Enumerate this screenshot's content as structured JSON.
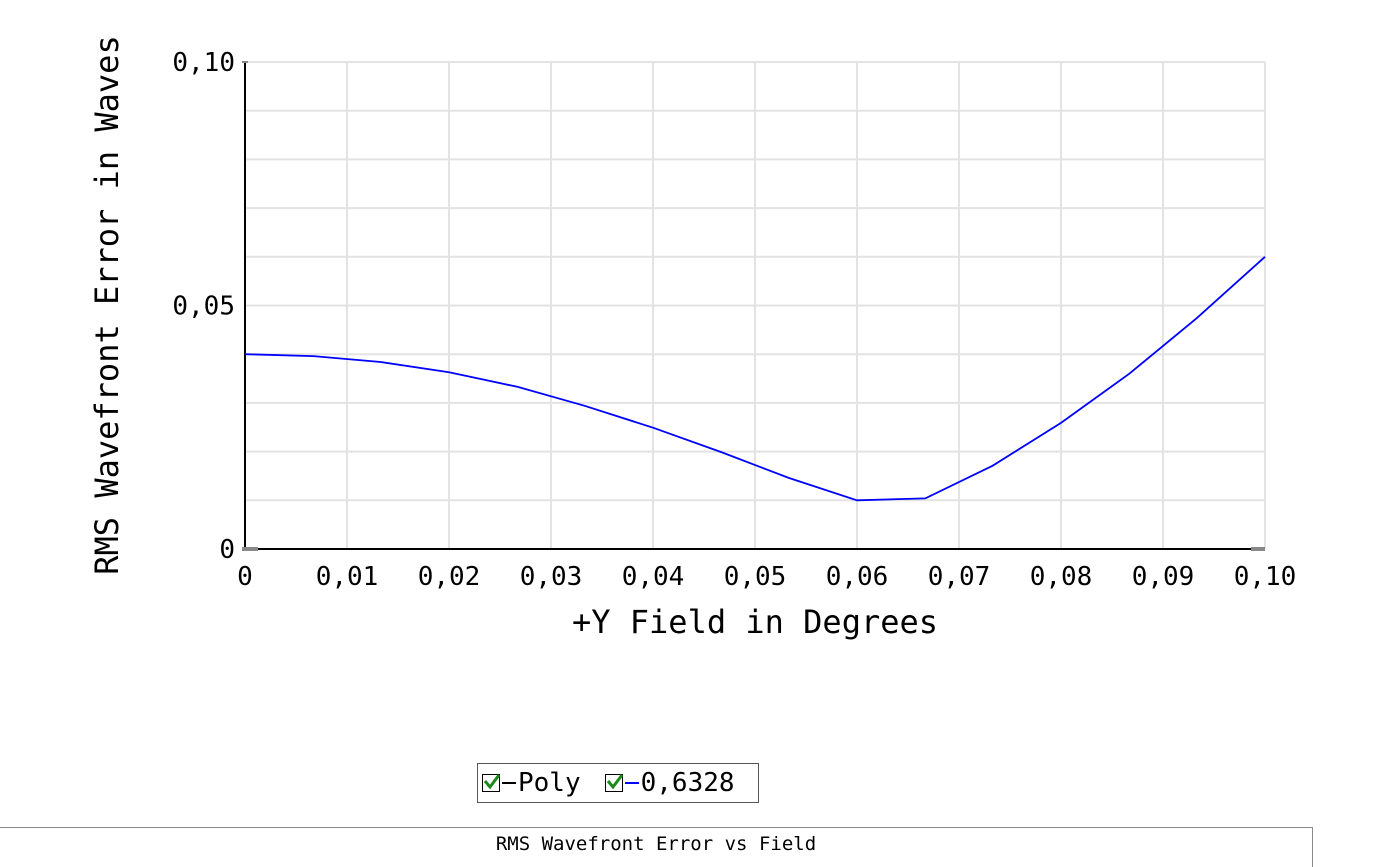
{
  "chart_data": {
    "type": "line",
    "title": "",
    "xlabel": "+Y Field in Degrees",
    "ylabel": "RMS Wavefront Error in Waves",
    "xlim": [
      0,
      0.1
    ],
    "ylim": [
      0,
      0.1
    ],
    "x_ticks": [
      0,
      0.01,
      0.02,
      0.03,
      0.04,
      0.05,
      0.06,
      0.07,
      0.08,
      0.09,
      0.1
    ],
    "x_tick_labels": [
      "0",
      "0,01",
      "0,02",
      "0,03",
      "0,04",
      "0,05",
      "0,06",
      "0,07",
      "0,08",
      "0,09",
      "0,10"
    ],
    "y_ticks": [
      0,
      0.05,
      0.1
    ],
    "y_tick_labels": [
      "0",
      "0,05",
      "0,10"
    ],
    "grid": true,
    "x_minor_step": 0.01,
    "y_minor_step": 0.01,
    "legend_placement": "bottom-center",
    "series": [
      {
        "name": "Poly",
        "color": "#000000",
        "checked": true,
        "x": [
          0,
          0.1
        ],
        "y": [
          0,
          0
        ]
      },
      {
        "name": "0,6328",
        "color": "#0000ff",
        "checked": true,
        "x": [
          0,
          0.0067,
          0.0133,
          0.02,
          0.0267,
          0.0333,
          0.04,
          0.0467,
          0.0533,
          0.06,
          0.0667,
          0.0733,
          0.08,
          0.0867,
          0.0933,
          0.1
        ],
        "y": [
          0.04,
          0.0396,
          0.0384,
          0.0363,
          0.0333,
          0.0294,
          0.0249,
          0.0199,
          0.0146,
          0.01,
          0.0104,
          0.0171,
          0.0259,
          0.036,
          0.0474,
          0.06
        ]
      }
    ]
  },
  "legend": {
    "items": [
      {
        "label": "Poly",
        "checked": true,
        "color": "#000000"
      },
      {
        "label": "0,6328",
        "checked": true,
        "color": "#0000ff"
      }
    ],
    "check_color": "#1a8a1a"
  },
  "status": {
    "title": "RMS Wavefront Error vs Field"
  }
}
